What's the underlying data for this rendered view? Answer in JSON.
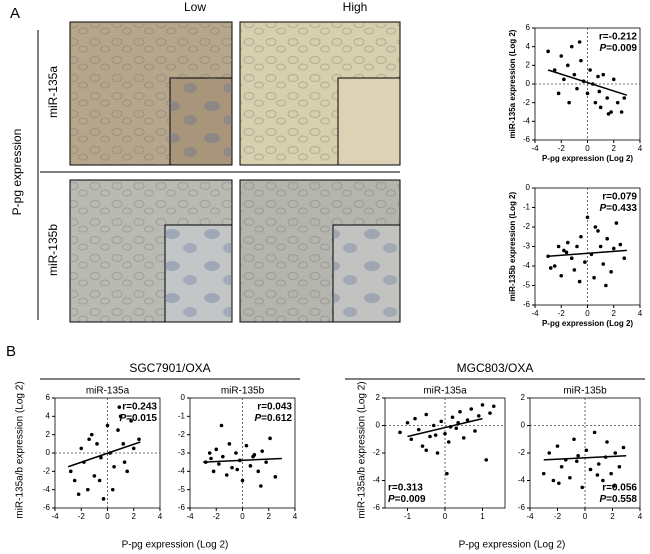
{
  "figure": {
    "panel_a": "A",
    "panel_b": "B",
    "col_low": "Low",
    "col_high": "High",
    "row_label": "P-pg expression",
    "row1": "miR-135a",
    "row2": "miR-135b",
    "group1": "SGC7901/OXA",
    "group2": "MGC803/OXA",
    "b_xlabel1": "P-pg expression (Log 2)",
    "b_xlabel2": "P-pg expression (Log 2)",
    "b_ylabel1": "miR-135a/b expression (Log 2)",
    "b_ylabel2": "miR-135a/b expression (Log 2)"
  },
  "chart_data": [
    {
      "type": "scatter",
      "xlabel": "P-pg expression (Log 2)",
      "ylabel": "miR-135a expression (Log 2)",
      "xlim": [
        -4,
        4
      ],
      "ylim": [
        -6,
        6
      ],
      "xticks": [
        -4,
        -2,
        0,
        2,
        4
      ],
      "yticks": [
        -6,
        -4,
        -2,
        0,
        2,
        4,
        6
      ],
      "x": [
        -2.5,
        -2,
        -1.8,
        -1.5,
        -1.2,
        -1,
        -0.8,
        -0.5,
        -0.3,
        0,
        0.2,
        0.4,
        0.6,
        0.8,
        1,
        1.2,
        1.5,
        1.8,
        2,
        2.3,
        2.6,
        -3,
        -2.2,
        -0.6,
        0.9,
        1.6,
        2.8,
        -1.4
      ],
      "y": [
        1.5,
        3,
        0.5,
        2,
        4,
        1,
        -0.5,
        2.5,
        0.3,
        -1,
        1.5,
        0,
        -2,
        0.8,
        -2.5,
        1,
        -1.5,
        -3,
        0.5,
        -2,
        -3,
        3.5,
        -1,
        4.5,
        -0.8,
        -3.2,
        -1.5,
        -2
      ],
      "fit_x": [
        -3,
        3
      ],
      "fit_y": [
        1.5,
        -1.2
      ],
      "ref_x": 0,
      "ref_y": 0,
      "r_label": "r=-0.212",
      "p_name": "P",
      "p_value": "=0.009",
      "stats_corner": "upper right"
    },
    {
      "type": "scatter",
      "xlabel": "P-pg expression (Log 2)",
      "ylabel": "miR-135b expression (Log 2)",
      "xlim": [
        -4,
        4
      ],
      "ylim": [
        -6,
        0
      ],
      "xticks": [
        -4,
        -2,
        0,
        2,
        4
      ],
      "yticks": [
        -6,
        -5,
        -4,
        -3,
        -2,
        -1,
        0
      ],
      "x": [
        -3,
        -2.5,
        -2.2,
        -2,
        -1.8,
        -1.5,
        -1.2,
        -1,
        -0.8,
        -0.5,
        -0.2,
        0,
        0.3,
        0.5,
        0.8,
        1,
        1.2,
        1.5,
        1.8,
        2,
        2.2,
        2.5,
        2.8,
        -0.6,
        0.6,
        1.4,
        -1.6,
        -2.8
      ],
      "y": [
        -3.5,
        -4,
        -3,
        -4.5,
        -3.2,
        -2.8,
        -3.6,
        -4.2,
        -3,
        -2.5,
        -3.8,
        -1.5,
        -3.4,
        -4.6,
        -2.2,
        -3,
        -3.9,
        -2.6,
        -4.3,
        -3.1,
        -1.8,
        -2.9,
        -3.6,
        -4.8,
        -2,
        -5,
        -3.3,
        -4.1
      ],
      "fit_x": [
        -3,
        3
      ],
      "fit_y": [
        -3.5,
        -3.2
      ],
      "ref_x": 0,
      "r_label": "r=0.079",
      "p_name": "P",
      "p_value": "=0.433",
      "stats_corner": "upper right"
    },
    {
      "type": "scatter",
      "title": "miR-135a",
      "xlim": [
        -4,
        4
      ],
      "ylim": [
        -6,
        6
      ],
      "xticks": [
        -4,
        -2,
        0,
        2,
        4
      ],
      "yticks": [
        -6,
        -4,
        -2,
        0,
        2,
        4,
        6
      ],
      "x": [
        -2.8,
        -2.5,
        -2,
        -1.8,
        -1.5,
        -1.2,
        -1,
        -0.8,
        -0.5,
        -0.3,
        0,
        0.2,
        0.5,
        0.8,
        1,
        1.2,
        1.5,
        1.8,
        2,
        2.4,
        -2.2,
        -0.6,
        0.4,
        1.3,
        -1.4,
        0.9
      ],
      "y": [
        -2,
        -3,
        0.5,
        -1,
        -4,
        2,
        -2.5,
        1,
        -0.5,
        -5,
        3,
        0,
        -1.5,
        2.5,
        4,
        1,
        -2,
        3.5,
        0.5,
        1.5,
        -4.5,
        -3,
        -4,
        -1,
        1.5,
        5
      ],
      "fit_x": [
        -3,
        2.5
      ],
      "fit_y": [
        -1.5,
        1.2
      ],
      "ref_x": 0,
      "ref_y": 0,
      "r_label": "r=0.243",
      "p_name": "P",
      "p_value": "=0.015",
      "stats_corner": "upper right"
    },
    {
      "type": "scatter",
      "title": "miR-135b",
      "xlim": [
        -4,
        4
      ],
      "ylim": [
        -6,
        0
      ],
      "xticks": [
        -4,
        -2,
        0,
        2,
        4
      ],
      "yticks": [
        -6,
        -5,
        -4,
        -3,
        -2,
        -1,
        0
      ],
      "x": [
        -2.8,
        -2.5,
        -2.2,
        -2,
        -1.8,
        -1.5,
        -1.2,
        -1,
        -0.8,
        -0.5,
        -0.2,
        0,
        0.3,
        0.6,
        0.9,
        1.2,
        1.5,
        1.8,
        2.1,
        2.5,
        -1.6,
        -0.4,
        0.8,
        1.4,
        -2.4
      ],
      "y": [
        -3.5,
        -3,
        -4,
        -2.8,
        -3.6,
        -3.2,
        -4.2,
        -2.5,
        -3.8,
        -3,
        -3.4,
        -4.5,
        -2.6,
        -3.7,
        -3.1,
        -4,
        -2.9,
        -3.5,
        -2.2,
        -4.3,
        -1.5,
        -3.9,
        -3.2,
        -4.8,
        -3.3
      ],
      "fit_x": [
        -3,
        3
      ],
      "fit_y": [
        -3.5,
        -3.3
      ],
      "ref_x": 0,
      "r_label": "r=0.043",
      "p_name": "P",
      "p_value": "=0.612",
      "stats_corner": "upper right"
    },
    {
      "type": "scatter",
      "title": "miR-135a",
      "xlim": [
        -1.6,
        1.6
      ],
      "ylim": [
        -6,
        2
      ],
      "xticks": [
        -1,
        0,
        1
      ],
      "yticks": [
        -6,
        -4,
        -2,
        0,
        2
      ],
      "x": [
        -1.2,
        -1,
        -0.9,
        -0.8,
        -0.7,
        -0.6,
        -0.5,
        -0.4,
        -0.3,
        -0.2,
        -0.1,
        0,
        0.1,
        0.2,
        0.3,
        0.4,
        0.5,
        0.6,
        0.7,
        0.8,
        0.9,
        1,
        1.1,
        1.2,
        1.3,
        -0.5,
        0.15,
        0.35,
        0.05,
        -0.25
      ],
      "y": [
        -0.5,
        0.2,
        -1,
        0.5,
        -0.3,
        -1.5,
        0.8,
        -0.8,
        0,
        -2,
        0.3,
        -0.6,
        -1.2,
        0.6,
        -0.2,
        1,
        -0.9,
        0.4,
        1.2,
        -0.4,
        0.7,
        1.5,
        -2.5,
        0.9,
        1.4,
        -1.8,
        -0.1,
        0.2,
        -3.5,
        -0.7
      ],
      "fit_x": [
        -1,
        1
      ],
      "fit_y": [
        -0.8,
        0.5
      ],
      "ref_x": 0,
      "ref_y": 0,
      "r_label": "r=0.313",
      "p_name": "P",
      "p_value": "=0.009",
      "stats_corner": "lower left"
    },
    {
      "type": "scatter",
      "title": "miR-135b",
      "xlim": [
        -4,
        4
      ],
      "ylim": [
        -6,
        2
      ],
      "xticks": [
        -4,
        -2,
        0,
        2,
        4
      ],
      "yticks": [
        -6,
        -4,
        -2,
        0,
        2
      ],
      "x": [
        -3,
        -2.6,
        -2.3,
        -2,
        -1.7,
        -1.4,
        -1.1,
        -0.8,
        -0.5,
        -0.2,
        0.1,
        0.4,
        0.7,
        1,
        1.3,
        1.6,
        1.9,
        2.2,
        2.5,
        2.8,
        -1.9,
        -0.6,
        0.9,
        1.5,
        2.1
      ],
      "y": [
        -3.5,
        -2,
        -4,
        -1.5,
        -3,
        -2.5,
        -3.8,
        -1,
        -2.2,
        -4.5,
        -1.8,
        -3.2,
        -0.5,
        -2.8,
        -4,
        -1.2,
        -3.5,
        -2,
        -3,
        -1.6,
        -4.2,
        -2.6,
        -3.6,
        -2.3,
        -4.4
      ],
      "fit_x": [
        -3,
        3
      ],
      "fit_y": [
        -2.5,
        -2.2
      ],
      "ref_x": 0,
      "ref_y": 0,
      "r_label": "r=0.056",
      "p_name": "P",
      "p_value": "=0.558",
      "stats_corner": "lower right"
    }
  ]
}
